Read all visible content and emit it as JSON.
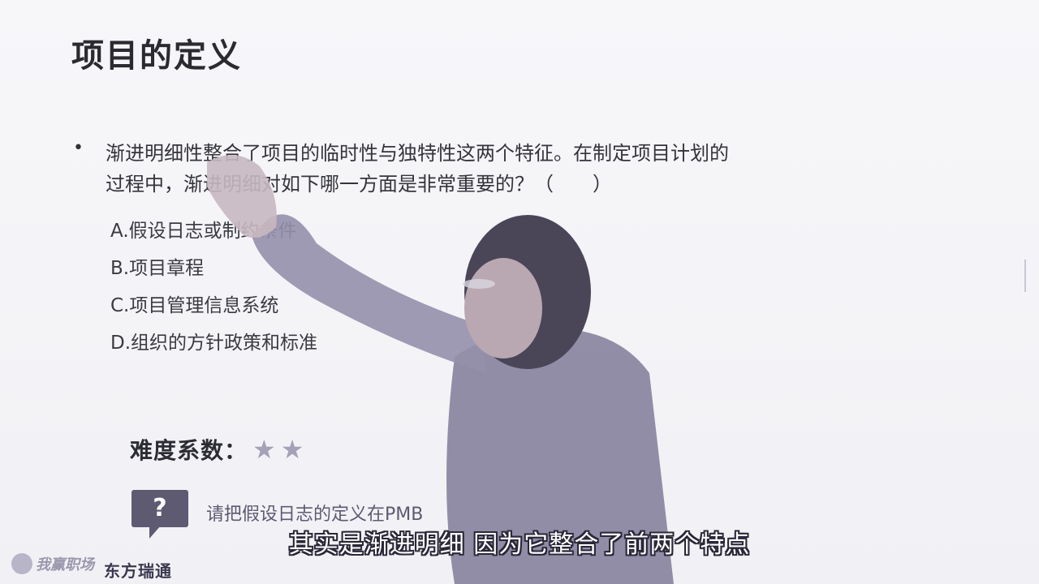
{
  "slide": {
    "title": "项目的定义",
    "bullet": "•",
    "question": "渐进明细性整合了项目的临时性与独特性这两个特征。在制定项目计划的过程中，渐进明细对如下哪一方面是非常重要的？（　　）",
    "options": [
      "A.假设日志或制约条件",
      "B.项目章程",
      "C.项目管理信息系统",
      "D.组织的方针政策和标准"
    ],
    "difficulty_label": "难度系数：",
    "difficulty_stars": 2,
    "star_glyph": "★",
    "hint_icon": "?",
    "hint_text": "请把假设日志的定义在PMB"
  },
  "branding": {
    "logo_left": "我赢职场",
    "logo_right": "东方瑞通"
  },
  "subtitle": "其实是渐进明细 因为它整合了前两个特点"
}
